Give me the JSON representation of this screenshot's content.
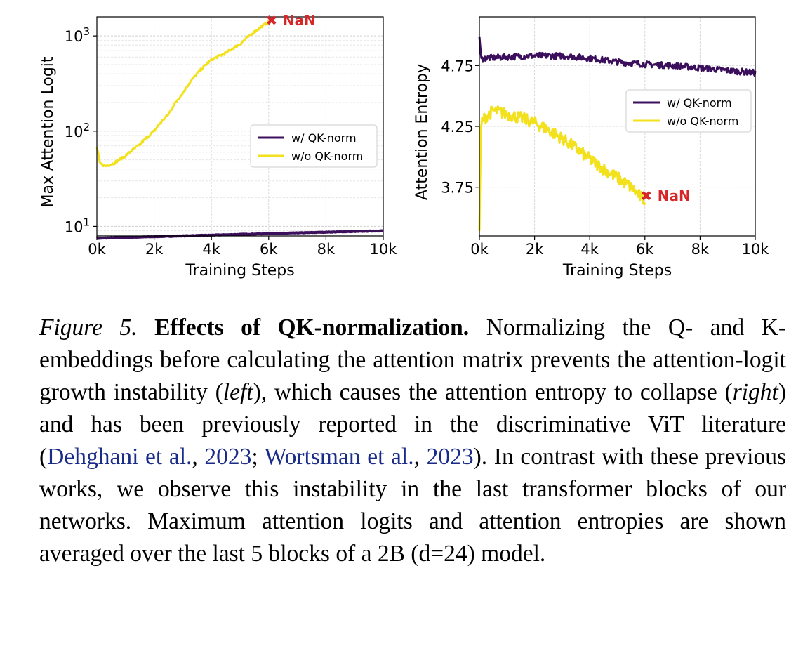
{
  "chart_data": [
    {
      "type": "line",
      "title": "",
      "xlabel": "Training Steps",
      "ylabel": "Max Attention Logit",
      "xlim": [
        0,
        10000
      ],
      "ylim_log10": [
        0.9,
        3.2
      ],
      "yscale": "log",
      "xticks": [
        0,
        2000,
        4000,
        6000,
        8000,
        10000
      ],
      "xtick_labels": [
        "0k",
        "2k",
        "4k",
        "6k",
        "8k",
        "10k"
      ],
      "yticks": [
        10,
        100,
        1000
      ],
      "ytick_labels": [
        {
          "base": "10",
          "exp": "1"
        },
        {
          "base": "10",
          "exp": "2"
        },
        {
          "base": "10",
          "exp": "3"
        }
      ],
      "grid": true,
      "legend_position": "center-right",
      "series": [
        {
          "name": "w/ QK-norm",
          "color": "#3b0f5c",
          "x": [
            0,
            2000,
            4000,
            6000,
            8000,
            10000
          ],
          "y": [
            7.5,
            7.8,
            8.1,
            8.4,
            8.7,
            9.0
          ]
        },
        {
          "name": "w/o QK-norm",
          "color": "#f2e11c",
          "x": [
            0,
            100,
            300,
            600,
            1000,
            1500,
            2000,
            2500,
            3000,
            3500,
            4000,
            4500,
            5000,
            5500,
            6000
          ],
          "y": [
            68,
            46,
            43,
            46,
            55,
            72,
            100,
            150,
            250,
            400,
            560,
            660,
            820,
            1100,
            1400
          ]
        }
      ],
      "annotation": {
        "text": "NaN",
        "marker": "✖",
        "x": 6100,
        "y": 1450,
        "color": "#d62728"
      }
    },
    {
      "type": "line",
      "title": "",
      "xlabel": "Training Steps",
      "ylabel": "Attention Entropy",
      "xlim": [
        0,
        10000
      ],
      "ylim": [
        3.35,
        5.15
      ],
      "xticks": [
        0,
        2000,
        4000,
        6000,
        8000,
        10000
      ],
      "xtick_labels": [
        "0k",
        "2k",
        "4k",
        "6k",
        "8k",
        "10k"
      ],
      "yticks": [
        3.75,
        4.25,
        4.75
      ],
      "ytick_labels": [
        "3.75",
        "4.25",
        "4.75"
      ],
      "grid": true,
      "legend_position": "upper-right",
      "series": [
        {
          "name": "w/ QK-norm",
          "color": "#3b0f5c",
          "x": [
            0,
            60,
            200,
            1000,
            2000,
            3000,
            4000,
            5000,
            6000,
            7000,
            8000,
            9000,
            10000
          ],
          "y": [
            5.0,
            4.8,
            4.81,
            4.82,
            4.83,
            4.83,
            4.81,
            4.78,
            4.76,
            4.75,
            4.73,
            4.71,
            4.69
          ]
        },
        {
          "name": "w/o QK-norm",
          "color": "#f2e11c",
          "x": [
            0,
            50,
            100,
            500,
            1000,
            1500,
            2000,
            2500,
            3000,
            3500,
            4000,
            4500,
            5000,
            5500,
            5800,
            6000
          ],
          "y": [
            3.4,
            4.2,
            4.3,
            4.38,
            4.35,
            4.32,
            4.28,
            4.22,
            4.15,
            4.07,
            3.98,
            3.9,
            3.83,
            3.75,
            3.68,
            3.64
          ]
        }
      ],
      "annotation": {
        "text": "NaN",
        "marker": "✖",
        "x": 6050,
        "y": 3.68,
        "color": "#d62728"
      }
    }
  ],
  "caption": {
    "label": "Figure 5.",
    "bold_title": "Effects of QK-normalization.",
    "t1": " Normalizing the Q- and K-embeddings before calculating the attention matrix prevents the attention-logit growth instability (",
    "left": "left",
    "t2": "), which causes the attention entropy to collapse (",
    "right": "right",
    "t3": ") and has been previously reported in the discriminative ViT literature (",
    "cite1": "Dehghani et al.",
    "t4": ", ",
    "cite1_year": "2023",
    "t5": "; ",
    "cite2": "Wortsman et al.",
    "t6": ", ",
    "cite2_year": "2023",
    "t7": "). In contrast with these previous works, we observe this instability in the last transformer blocks of our networks. Maximum attention logits and attention entropies are shown averaged over the last 5 blocks of a 2B (d=24) model."
  }
}
